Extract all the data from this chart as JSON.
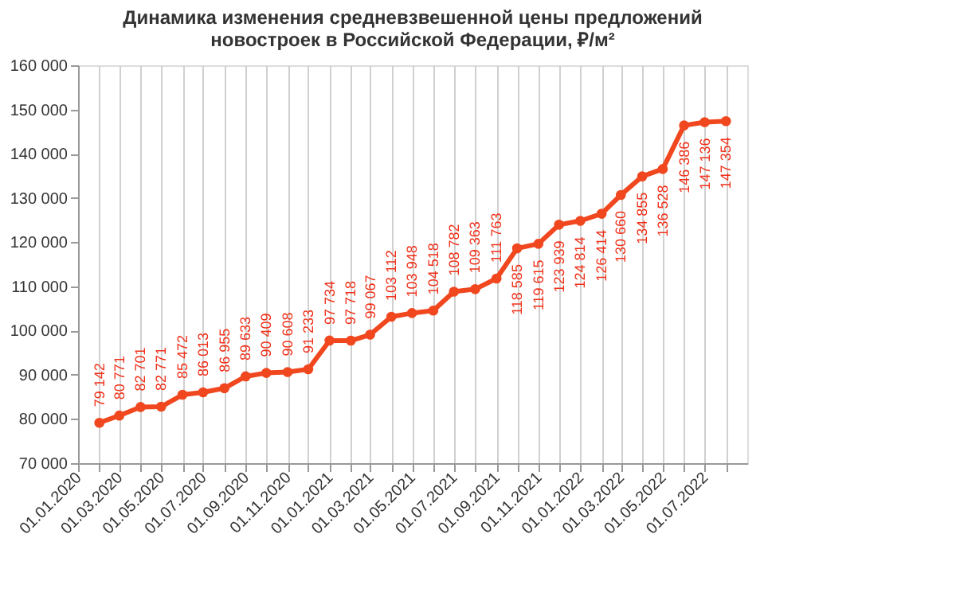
{
  "chart_data": {
    "type": "line",
    "title": [
      "Динамика изменения средневзвешенной цены предложений",
      "новостроек в Российской Федерации, ₽/м²"
    ],
    "x": [
      "2020-02-01",
      "2020-03-01",
      "2020-04-01",
      "2020-05-01",
      "2020-06-01",
      "2020-07-01",
      "2020-08-01",
      "2020-09-01",
      "2020-10-01",
      "2020-11-01",
      "2020-12-01",
      "2021-01-01",
      "2021-02-01",
      "2021-03-01",
      "2021-04-01",
      "2021-05-01",
      "2021-06-01",
      "2021-07-01",
      "2021-08-01",
      "2021-09-01",
      "2021-10-01",
      "2021-11-01",
      "2021-12-01",
      "2022-01-01",
      "2022-02-01",
      "2022-03-01",
      "2022-04-01",
      "2022-05-01",
      "2022-06-01",
      "2022-07-01",
      "2022-08-01"
    ],
    "series": [
      {
        "color": "#f0471f",
        "values": [
          79142,
          80771,
          82701,
          82771,
          85472,
          86013,
          86955,
          89633,
          90409,
          90608,
          91233,
          97734,
          97718,
          99067,
          103112,
          103948,
          104518,
          108782,
          109363,
          111763,
          118585,
          119615,
          123939,
          124814,
          126414,
          130660,
          134855,
          136528,
          146386,
          147136,
          147354
        ],
        "value_labels": [
          "79 142",
          "80 771",
          "82 701",
          "82 771",
          "85 472",
          "86 013",
          "86 955",
          "89 633",
          "90 409",
          "90 608",
          "91 233",
          "97 734",
          "97 718",
          "99 067",
          "103 112",
          "103 948",
          "104 518",
          "108 782",
          "109 363",
          "111 763",
          "118 585",
          "119 615",
          "123 939",
          "124 814",
          "126 414",
          "130 660",
          "134 855",
          "136 528",
          "146 386",
          "147 136",
          "147 354"
        ]
      }
    ],
    "xlim": [
      "2020-01-01",
      "2022-09-01"
    ],
    "xticks": [
      {
        "value": "2020-01-01",
        "label": "01.01.2020"
      },
      {
        "value": "2020-02-01",
        "label": null
      },
      {
        "value": "2020-03-01",
        "label": "01.03.2020"
      },
      {
        "value": "2020-04-01",
        "label": null
      },
      {
        "value": "2020-05-01",
        "label": "01.05.2020"
      },
      {
        "value": "2020-06-01",
        "label": null
      },
      {
        "value": "2020-07-01",
        "label": "01.07.2020"
      },
      {
        "value": "2020-08-01",
        "label": null
      },
      {
        "value": "2020-09-01",
        "label": "01.09.2020"
      },
      {
        "value": "2020-10-01",
        "label": null
      },
      {
        "value": "2020-11-01",
        "label": "01.11.2020"
      },
      {
        "value": "2020-12-01",
        "label": null
      },
      {
        "value": "2021-01-01",
        "label": "01.01.2021"
      },
      {
        "value": "2021-02-01",
        "label": null
      },
      {
        "value": "2021-03-01",
        "label": "01.03.2021"
      },
      {
        "value": "2021-04-01",
        "label": null
      },
      {
        "value": "2021-05-01",
        "label": "01.05.2021"
      },
      {
        "value": "2021-06-01",
        "label": null
      },
      {
        "value": "2021-07-01",
        "label": "01.07.2021"
      },
      {
        "value": "2021-08-01",
        "label": null
      },
      {
        "value": "2021-09-01",
        "label": "01.09.2021"
      },
      {
        "value": "2021-10-01",
        "label": null
      },
      {
        "value": "2021-11-01",
        "label": "01.11.2021"
      },
      {
        "value": "2021-12-01",
        "label": null
      },
      {
        "value": "2022-01-01",
        "label": "01.01.2022"
      },
      {
        "value": "2022-02-01",
        "label": null
      },
      {
        "value": "2022-03-01",
        "label": "01.03.2022"
      },
      {
        "value": "2022-04-01",
        "label": null
      },
      {
        "value": "2022-05-01",
        "label": "01.05.2022"
      },
      {
        "value": "2022-06-01",
        "label": null
      },
      {
        "value": "2022-07-01",
        "label": "01.07.2022"
      },
      {
        "value": "2022-08-01",
        "label": null
      }
    ],
    "ylim": [
      70000,
      160000
    ],
    "yticks": [
      {
        "value": 70000,
        "label": "70 000"
      },
      {
        "value": 80000,
        "label": "80 000"
      },
      {
        "value": 90000,
        "label": "90 000"
      },
      {
        "value": 100000,
        "label": "100 000"
      },
      {
        "value": 110000,
        "label": "110 000"
      },
      {
        "value": 120000,
        "label": "120 000"
      },
      {
        "value": 130000,
        "label": "130 000"
      },
      {
        "value": 140000,
        "label": "140 000"
      },
      {
        "value": 150000,
        "label": "150 000"
      },
      {
        "value": 160000,
        "label": "160 000"
      }
    ],
    "grid": "x",
    "marker": "circle",
    "line_style": "solid",
    "legend": false
  }
}
